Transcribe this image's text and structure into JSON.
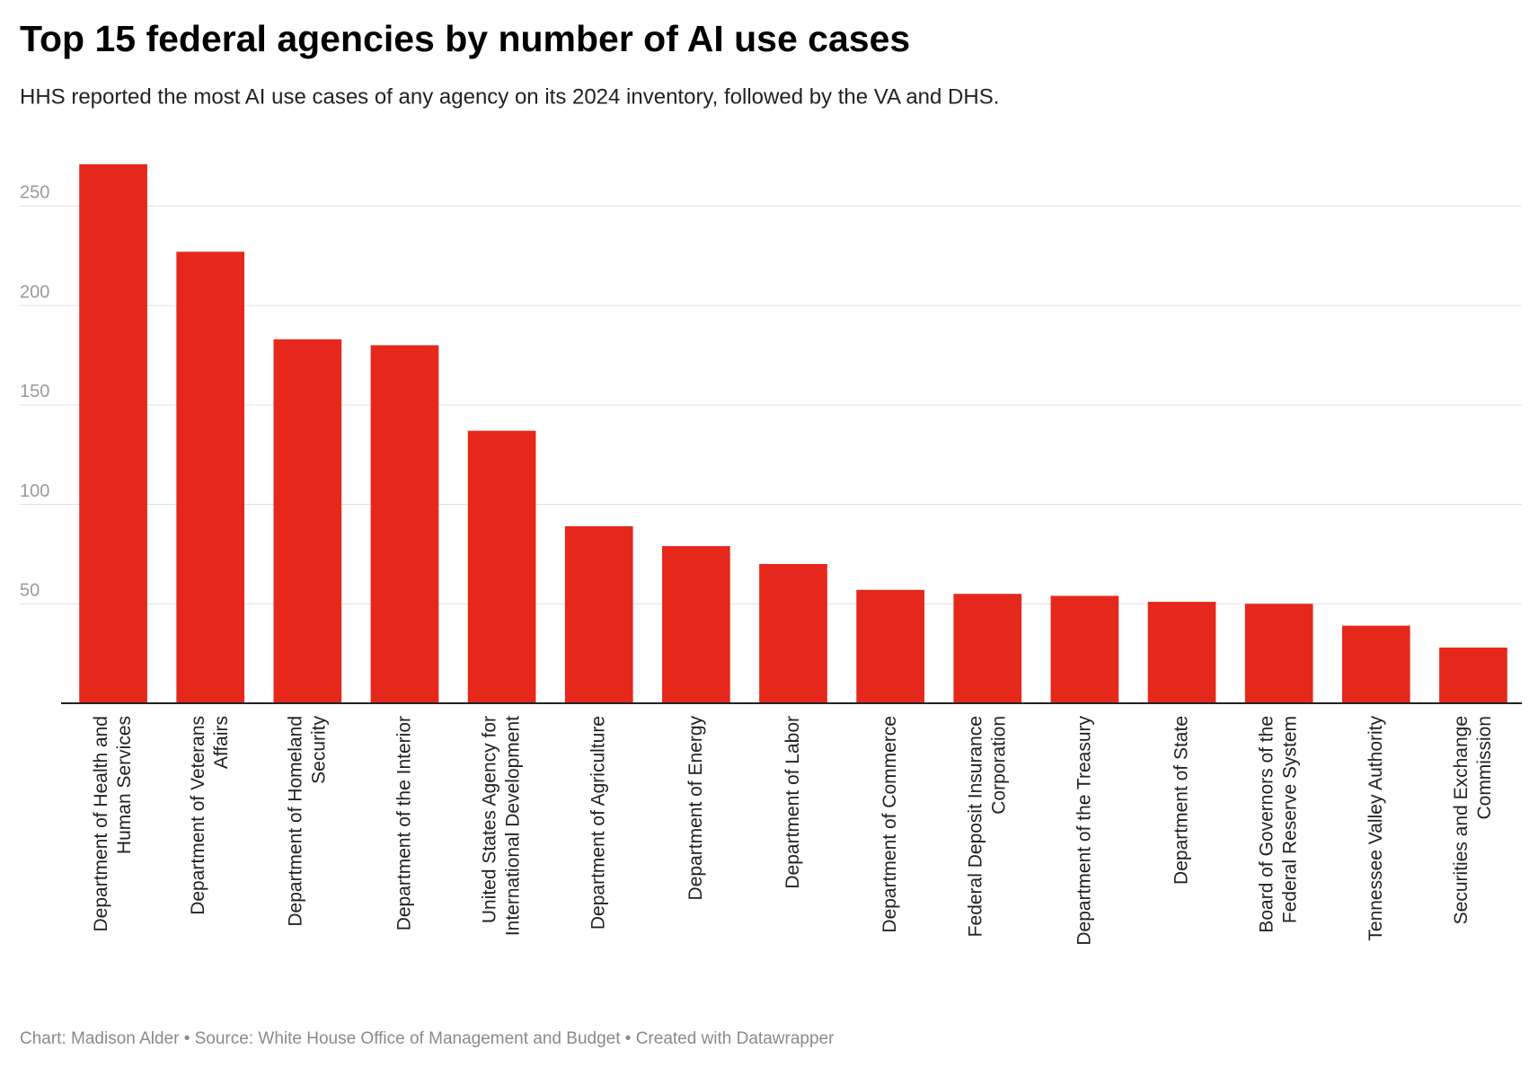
{
  "chart_data": {
    "type": "bar",
    "title": "Top 15 federal agencies by number of AI use cases",
    "subtitle": "HHS reported the most AI use cases of any agency on its 2024 inventory, followed by the VA and DHS.",
    "categories": [
      "Department of Health and Human Services",
      "Department of Veterans Affairs",
      "Department of Homeland Security",
      "Department of the Interior",
      "United States Agency for International Development",
      "Department of Agriculture",
      "Department of Energy",
      "Department of Labor",
      "Department of Commerce",
      "Federal Deposit Insurance Corporation",
      "Department of the Treasury",
      "Department of State",
      "Board of Governors of the Federal Reserve System",
      "Tennessee Valley Authority",
      "Securities and Exchange Commission"
    ],
    "values": [
      271,
      227,
      183,
      180,
      137,
      89,
      79,
      70,
      57,
      55,
      54,
      51,
      50,
      39,
      28
    ],
    "color": "#e5281b",
    "ylim": [
      0,
      275
    ],
    "yticks": [
      50,
      100,
      150,
      200,
      250
    ],
    "grid": true,
    "footer": "Chart: Madison Alder • Source: White House Office of Management and Budget • Created with Datawrapper"
  }
}
